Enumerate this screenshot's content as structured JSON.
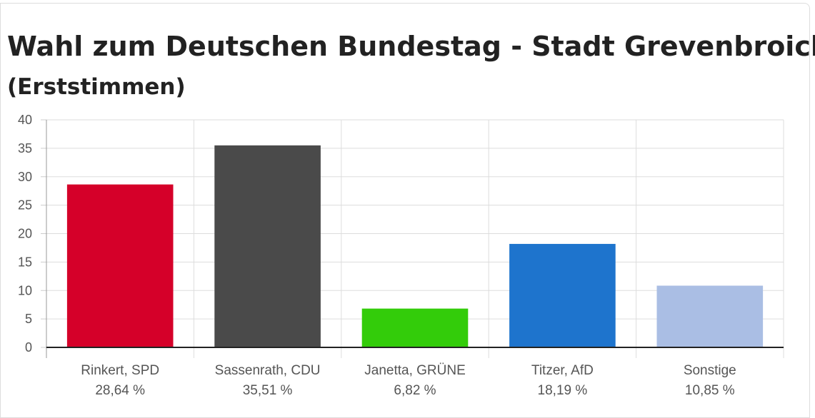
{
  "chart_data": {
    "type": "bar",
    "title": "Wahl zum Deutschen Bundestag - Stadt Grevenbroich",
    "subtitle": "(Erststimmen)",
    "categories": [
      "Rinkert, SPD",
      "Sassenrath, CDU",
      "Janetta, GRÜNE",
      "Titzer, AfD",
      "Sonstige"
    ],
    "values": [
      28.64,
      35.51,
      6.82,
      18.19,
      10.85
    ],
    "value_labels": [
      "28,64 %",
      "35,51 %",
      "6,82 %",
      "18,19 %",
      "10,85 %"
    ],
    "colors": [
      "#d50029",
      "#4a4a4a",
      "#33cc0a",
      "#1e74cd",
      "#aabee4"
    ],
    "ylim": [
      0,
      40
    ],
    "yticks": [
      0,
      5,
      10,
      15,
      20,
      25,
      30,
      35,
      40
    ],
    "grid": true
  }
}
